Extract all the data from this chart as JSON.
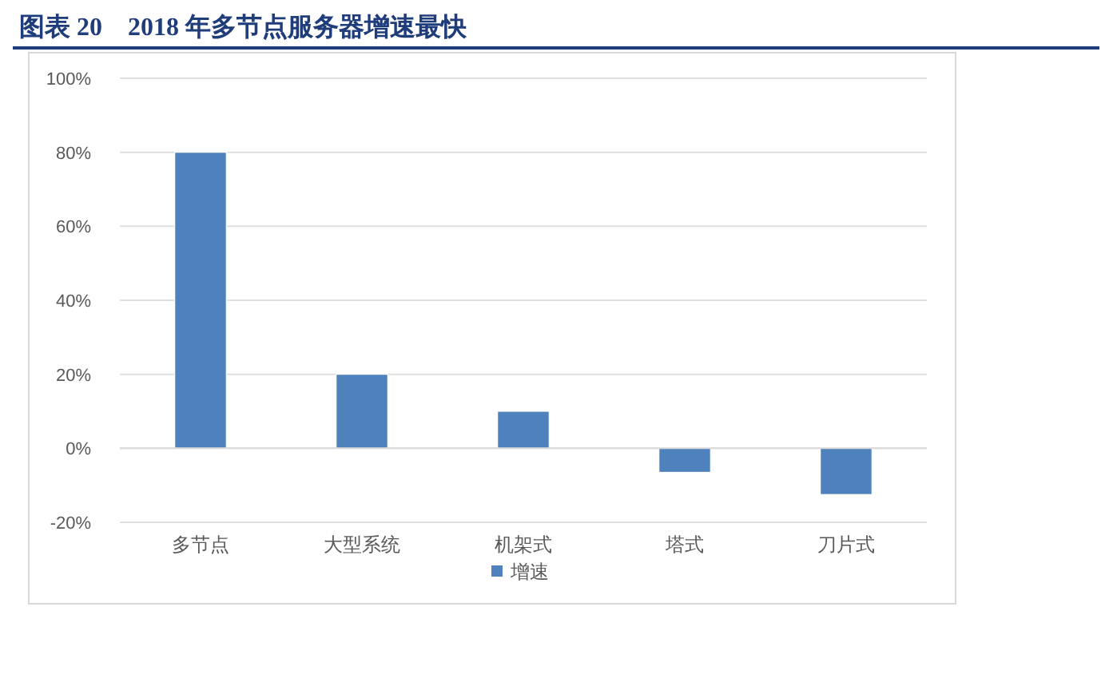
{
  "chart_data": {
    "type": "bar",
    "title": "图表 20　2018 年多节点服务器增速最快",
    "categories": [
      "多节点",
      "大型系统",
      "机架式",
      "塔式",
      "刀片式"
    ],
    "series": [
      {
        "name": "增速",
        "color": "#4f81bd",
        "values": [
          80,
          20,
          10,
          -6.5,
          -12.5
        ]
      }
    ],
    "ylim": [
      -20,
      100
    ],
    "yticks": [
      {
        "value": -20,
        "label": "-20%"
      },
      {
        "value": 0,
        "label": "0%"
      },
      {
        "value": 20,
        "label": "20%"
      },
      {
        "value": 40,
        "label": "40%"
      },
      {
        "value": 60,
        "label": "60%"
      },
      {
        "value": 80,
        "label": "80%"
      },
      {
        "value": 100,
        "label": "100%"
      }
    ],
    "grid": "y",
    "legend": "bottom"
  }
}
